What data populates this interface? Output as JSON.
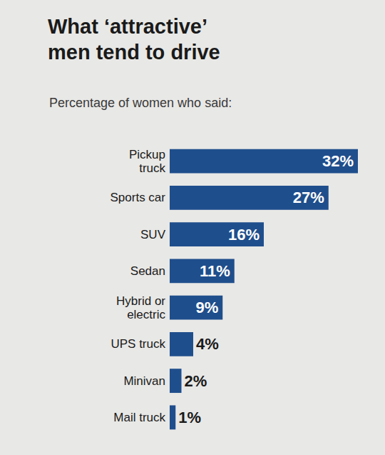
{
  "chart_data": {
    "type": "bar",
    "title": "What ‘attractive’ men tend to drive",
    "subtitle": "Percentage of women who said:",
    "orientation": "horizontal",
    "categories": [
      "Pickup truck",
      "Sports car",
      "SUV",
      "Sedan",
      "Hybrid or electric",
      "UPS truck",
      "Minivan",
      "Mail truck"
    ],
    "values": [
      32,
      27,
      16,
      11,
      9,
      4,
      2,
      1
    ],
    "value_labels": [
      "32%",
      "27%",
      "16%",
      "11%",
      "9%",
      "4%",
      "2%",
      "1%"
    ],
    "color": "#1f4e8c",
    "xlim": [
      0,
      32
    ],
    "data_labels": true,
    "tick_labels": "y",
    "grid": false
  }
}
